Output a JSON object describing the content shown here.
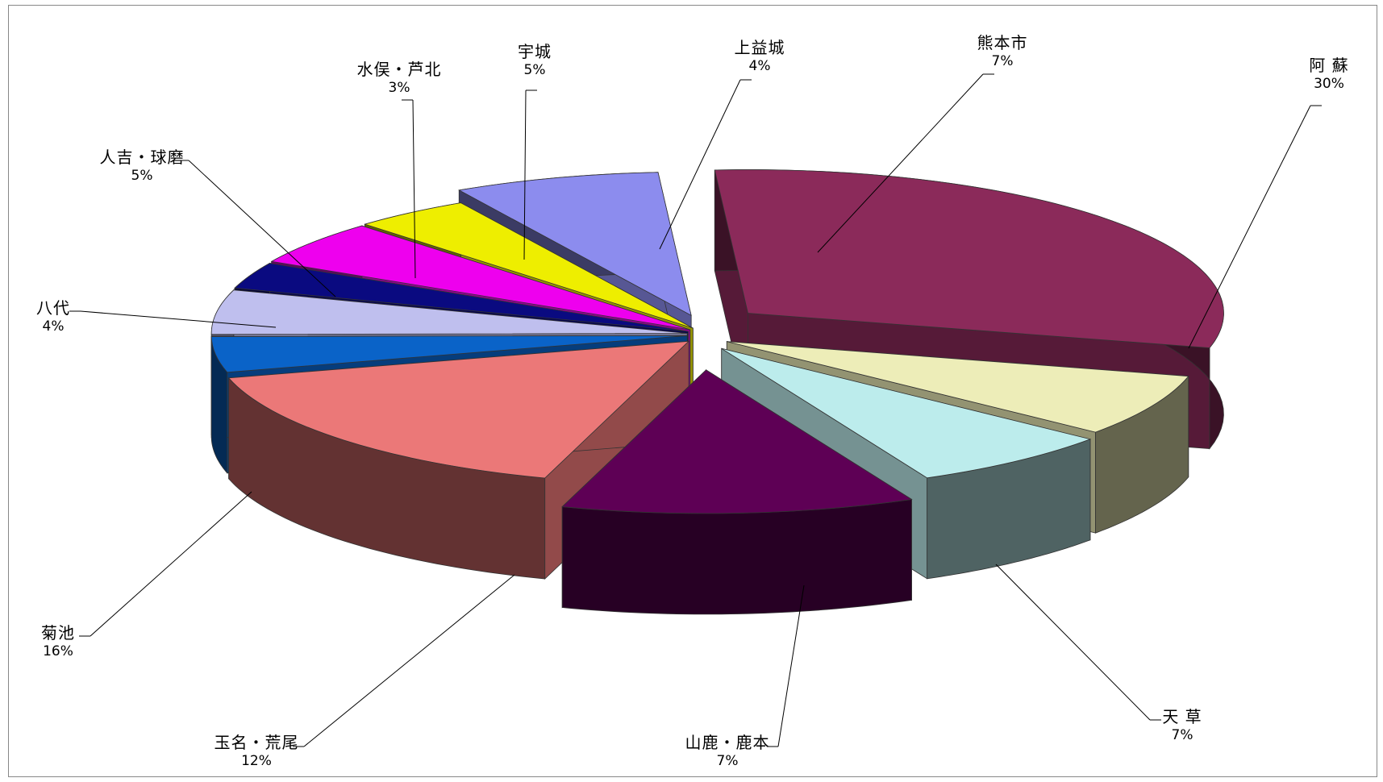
{
  "chart_data": {
    "type": "pie",
    "style": "3d-exploded",
    "slices": [
      {
        "label": "阿 蘇",
        "value": 30,
        "value_label": "30%",
        "color": "#8B2A5A"
      },
      {
        "label": "天 草",
        "value": 7,
        "value_label": "7%",
        "color": "#EDEDB8"
      },
      {
        "label": "山鹿・鹿本",
        "value": 7,
        "value_label": "7%",
        "color": "#BCECEC"
      },
      {
        "label": "玉名・荒尾",
        "value": 12,
        "value_label": "12%",
        "color": "#5E0055"
      },
      {
        "label": "菊池",
        "value": 16,
        "value_label": "16%",
        "color": "#EB7878"
      },
      {
        "label": "八代",
        "value": 4,
        "value_label": "4%",
        "color": "#0A63C8"
      },
      {
        "label": "人吉・球磨",
        "value": 5,
        "value_label": "5%",
        "color": "#BFBFEE"
      },
      {
        "label": "水俣・芦北",
        "value": 3,
        "value_label": "3%",
        "color": "#0A0A80"
      },
      {
        "label": "宇城",
        "value": 5,
        "value_label": "5%",
        "color": "#EE00EE"
      },
      {
        "label": "上益城",
        "value": 4,
        "value_label": "4%",
        "color": "#EEEE00"
      },
      {
        "label": "熊本市",
        "value": 7,
        "value_label": "7%",
        "color": "#8C8CEE"
      }
    ]
  }
}
